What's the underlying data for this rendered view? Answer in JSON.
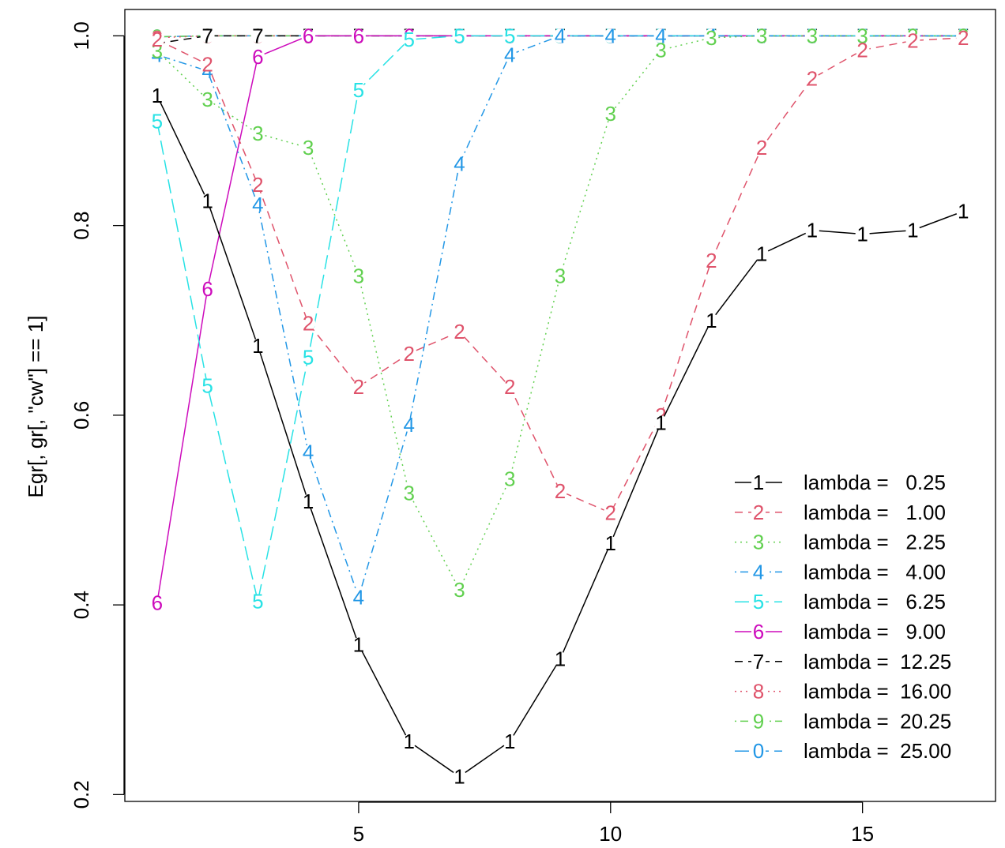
{
  "chart_data": {
    "type": "line",
    "title": "",
    "xlabel": "",
    "ylabel": "Egr[, gr[, \"cw\"] == 1]",
    "xlim": [
      0.36,
      17.64
    ],
    "ylim": [
      0.1928,
      1.0278
    ],
    "x_ticks": [
      5,
      10,
      15
    ],
    "y_ticks": [
      0.2,
      0.4,
      0.6,
      0.8,
      1.0
    ],
    "x_tick_labels": [
      "5",
      "10",
      "15"
    ],
    "y_tick_labels": [
      "0.2",
      "0.4",
      "0.6",
      "0.8",
      "1.0"
    ],
    "grid": false,
    "legend_position": "bottom-right",
    "x": [
      1,
      2,
      3,
      4,
      5,
      6,
      7,
      8,
      9,
      10,
      11,
      12,
      13,
      14,
      15,
      16,
      17
    ],
    "series": [
      {
        "name": "lambda =   0.25",
        "symbol": "1",
        "color": "#000000",
        "dash": "solid",
        "values": [
          0.937,
          0.826,
          0.673,
          0.509,
          0.358,
          0.256,
          0.219,
          0.256,
          0.343,
          0.465,
          0.592,
          0.7,
          0.77,
          0.795,
          0.791,
          0.795,
          0.815
        ]
      },
      {
        "name": "lambda =   1.00",
        "symbol": "2",
        "color": "#DF536B",
        "dash": "dashed",
        "values": [
          0.996,
          0.97,
          0.843,
          0.697,
          0.63,
          0.665,
          0.688,
          0.63,
          0.52,
          0.497,
          0.6,
          0.763,
          0.882,
          0.955,
          0.985,
          0.995,
          0.998
        ]
      },
      {
        "name": "lambda =   2.25",
        "symbol": "3",
        "color": "#61D04F",
        "dash": "dotted",
        "values": [
          0.984,
          0.933,
          0.897,
          0.882,
          0.747,
          0.518,
          0.416,
          0.533,
          0.747,
          0.918,
          0.985,
          0.998,
          1.0,
          1.0,
          1.0,
          1.0,
          1.0
        ]
      },
      {
        "name": "lambda =   4.00",
        "symbol": "4",
        "color": "#2297E6",
        "dash": "dotdash",
        "values": [
          0.98,
          0.963,
          0.822,
          0.561,
          0.408,
          0.59,
          0.865,
          0.98,
          1.0,
          1.0,
          1.0,
          1.0,
          1.0,
          1.0,
          1.0,
          1.0,
          1.0
        ]
      },
      {
        "name": "lambda =   6.25",
        "symbol": "5",
        "color": "#28E2E5",
        "dash": "longdash",
        "values": [
          0.91,
          0.631,
          0.404,
          0.661,
          0.943,
          0.996,
          1.0,
          1.0,
          1.0,
          1.0,
          1.0,
          1.0,
          1.0,
          1.0,
          1.0,
          1.0,
          1.0
        ]
      },
      {
        "name": "lambda =   9.00",
        "symbol": "6",
        "color": "#CD0BBC",
        "dash": "solid",
        "values": [
          0.402,
          0.733,
          0.978,
          1.0,
          1.0,
          1.0,
          1.0,
          1.0,
          1.0,
          1.0,
          1.0,
          1.0,
          1.0,
          1.0,
          1.0,
          1.0,
          1.0
        ]
      },
      {
        "name": "lambda =  12.25",
        "symbol": "7",
        "color": "#000000",
        "dash": "dashed",
        "values": [
          0.992,
          1.0,
          1.0,
          1.0,
          1.0,
          1.0,
          1.0,
          1.0,
          1.0,
          1.0,
          1.0,
          1.0,
          1.0,
          1.0,
          1.0,
          1.0,
          1.0
        ]
      },
      {
        "name": "lambda =  16.00",
        "symbol": "8",
        "color": "#DF536B",
        "dash": "dotted",
        "values": [
          0.998,
          1.0,
          1.0,
          1.0,
          1.0,
          1.0,
          1.0,
          1.0,
          1.0,
          1.0,
          1.0,
          1.0,
          1.0,
          1.0,
          1.0,
          1.0,
          1.0
        ]
      },
      {
        "name": "lambda =  20.25",
        "symbol": "9",
        "color": "#61D04F",
        "dash": "dotdash",
        "values": [
          0.999,
          1.0,
          1.0,
          1.0,
          1.0,
          1.0,
          1.0,
          1.0,
          1.0,
          1.0,
          1.0,
          1.0,
          1.0,
          1.0,
          1.0,
          1.0,
          1.0
        ]
      },
      {
        "name": "lambda =  25.00",
        "symbol": "0",
        "color": "#2297E6",
        "dash": "longdash",
        "values": [
          0.999,
          1.0,
          1.0,
          1.0,
          1.0,
          1.0,
          1.0,
          1.0,
          1.0,
          1.0,
          1.0,
          1.0,
          1.0,
          1.0,
          1.0,
          1.0,
          1.0
        ]
      }
    ]
  }
}
